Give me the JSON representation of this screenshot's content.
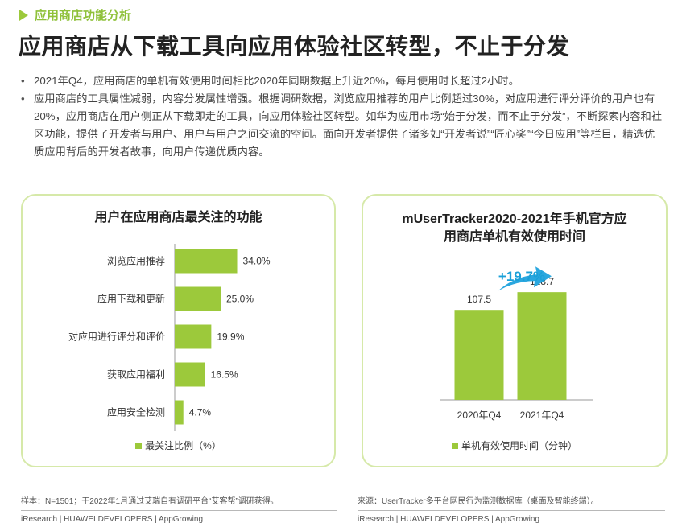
{
  "section_tag": "应用商店功能分析",
  "main_title": "应用商店从下载工具向应用体验社区转型，不止于分发",
  "bullets": [
    "2021年Q4，应用商店的单机有效使用时间相比2020年同期数据上升近20%，每月使用时长超过2小时。",
    "应用商店的工具属性减弱，内容分发属性增强。根据调研数据，浏览应用推荐的用户比例超过30%，对应用进行评分评价的用户也有20%，应用商店在用户侧正从下载即走的工具，向应用体验社区转型。如华为应用市场“始于分发，而不止于分发”，不断探索内容和社区功能，提供了开发者与用户、用户与用户之间交流的空间。面向开发者提供了诸多如“开发者说”“匠心奖”“今日应用”等栏目，精选优质应用背后的开发者故事，向用户传递优质内容。"
  ],
  "left_chart": {
    "title": "用户在应用商店最关注的功能",
    "legend": "最关注比例（%）",
    "footnote": "样本：N=1501；于2022年1月通过艾瑞自有调研平台“艾客帮”调研获得。",
    "brand": "iResearch | HUAWEI DEVELOPERS | AppGrowing"
  },
  "right_chart": {
    "title_line1": "mUserTracker2020-2021年手机官方应",
    "title_line2": "用商店单机有效使用时间",
    "growth_label": "+19.7%",
    "legend": "单机有效使用时间（分钟）",
    "footnote": "来源：UserTracker多平台网民行为监测数据库（桌面及智能终端）。",
    "brand": "iResearch | HUAWEI DEVELOPERS | AppGrowing"
  },
  "colors": {
    "accent": "#9cc93b",
    "accent_dark": "#8fc13a",
    "arrow": "#2aa7df",
    "growth": "#1aa0d8",
    "border": "#d6e9a9"
  },
  "chart_data": [
    {
      "type": "bar",
      "orientation": "horizontal",
      "title": "用户在应用商店最关注的功能",
      "categories": [
        "浏览应用推荐",
        "应用下载和更新",
        "对应用进行评分和评价",
        "获取应用福利",
        "应用安全检测"
      ],
      "values": [
        34.0,
        25.0,
        19.9,
        16.5,
        4.7
      ],
      "value_labels": [
        "34.0%",
        "25.0%",
        "19.9%",
        "16.5%",
        "4.7%"
      ],
      "legend": "最关注比例（%）",
      "xlim": [
        0,
        100
      ]
    },
    {
      "type": "bar",
      "title": "mUserTracker2020-2021年手机官方应用商店单机有效使用时间",
      "categories": [
        "2020年Q4",
        "2021年Q4"
      ],
      "values": [
        107.5,
        128.7
      ],
      "value_labels": [
        "107.5",
        "128.7"
      ],
      "legend": "单机有效使用时间（分钟）",
      "annotation": "+19.7%",
      "ylim": [
        0,
        190
      ]
    }
  ]
}
